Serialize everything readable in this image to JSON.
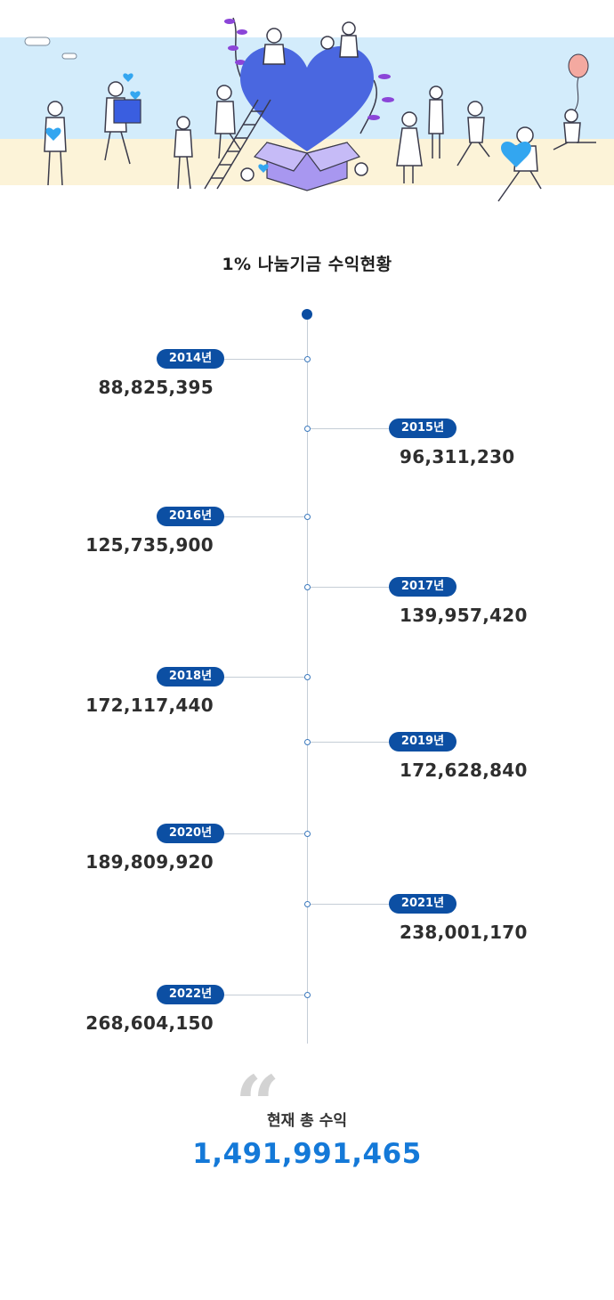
{
  "title": "1% 나눔기금 수익현황",
  "colors": {
    "badge": "#0c4fa3",
    "total": "#1479d8",
    "line": "#c5cdd6",
    "sky": "#d3ecfb",
    "sand": "#fcf3d8",
    "heart": "#4a67e0"
  },
  "timeline": [
    {
      "year": "2014년",
      "amount": "88,825,395"
    },
    {
      "year": "2015년",
      "amount": "96,311,230"
    },
    {
      "year": "2016년",
      "amount": "125,735,900"
    },
    {
      "year": "2017년",
      "amount": "139,957,420"
    },
    {
      "year": "2018년",
      "amount": "172,117,440"
    },
    {
      "year": "2019년",
      "amount": "172,628,840"
    },
    {
      "year": "2020년",
      "amount": "189,809,920"
    },
    {
      "year": "2021년",
      "amount": "238,001,170"
    },
    {
      "year": "2022년",
      "amount": "268,604,150"
    }
  ],
  "total": {
    "quote_mark": "“",
    "label": "현재 총 수익",
    "value": "1,491,991,465"
  },
  "hero": {
    "illustration": "people-sharing-heart-illustration"
  }
}
